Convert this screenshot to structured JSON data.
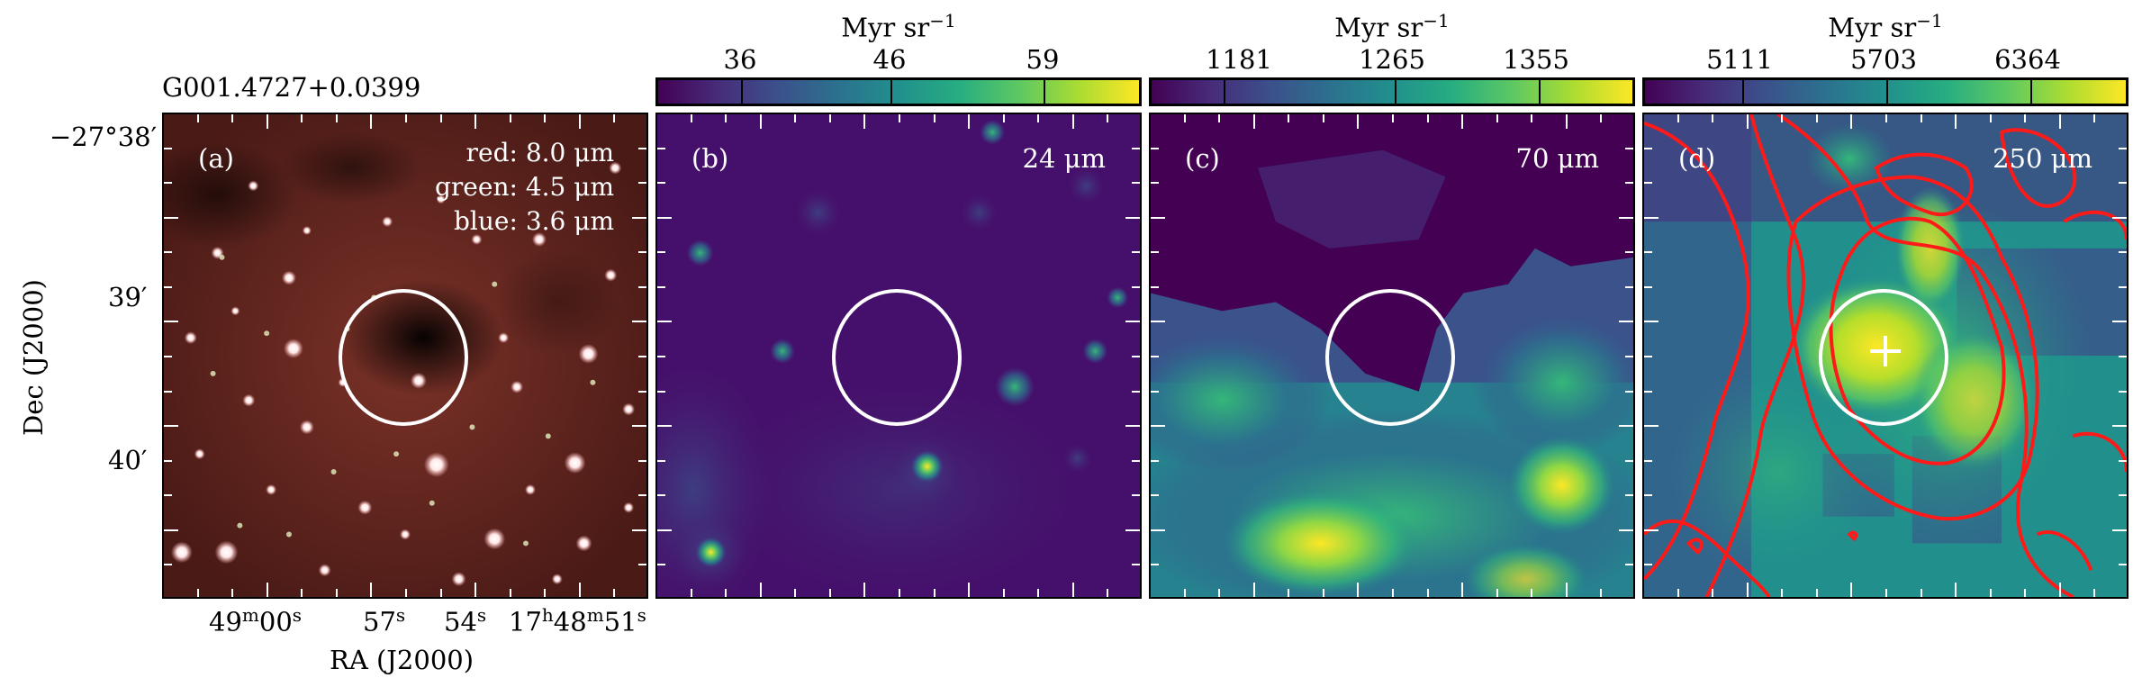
{
  "source_name": "G001.4727+0.0399",
  "axes": {
    "ylabel": "Dec (J2000)",
    "xlabel": "RA (J2000)",
    "dec_ticks": [
      "−27°38′",
      "39′",
      "40′"
    ],
    "ra_ticks": [
      {
        "h": "",
        "m": "49",
        "s": "00"
      },
      {
        "h": "",
        "m": "",
        "s": "57"
      },
      {
        "h": "",
        "m": "",
        "s": "54"
      },
      {
        "h": "17",
        "m": "48",
        "s": "51"
      }
    ]
  },
  "panels": {
    "a": {
      "label": "(a)",
      "red": "red: 8.0 μm",
      "green": "green: 4.5 μm",
      "blue": "blue: 3.6 μm"
    },
    "b": {
      "label": "(b)",
      "wavelength": "24 μm"
    },
    "c": {
      "label": "(c)",
      "wavelength": "70 μm"
    },
    "d": {
      "label": "(d)",
      "wavelength": "250 μm"
    }
  },
  "colorbars": {
    "unit": "Myr sr",
    "unit_exp": "−1",
    "b": [
      "36",
      "46",
      "59"
    ],
    "c": [
      "1181",
      "1265",
      "1355"
    ],
    "d": [
      "5111",
      "5703",
      "6364"
    ]
  },
  "colors": {
    "contour": "#ff1a1a",
    "circle": "#ffffff",
    "viridis_low": "#440154",
    "viridis_high": "#fde725"
  }
}
